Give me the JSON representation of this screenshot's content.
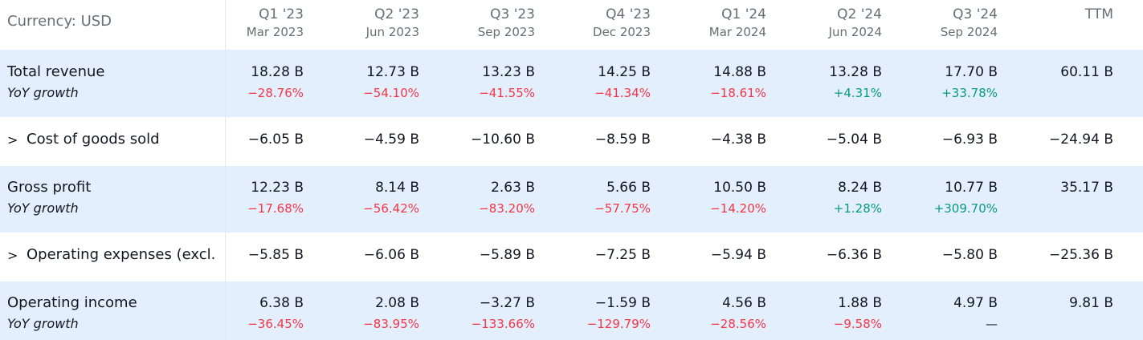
{
  "currency_label": "Currency: USD",
  "columns": [
    {
      "q": "Q1 '23",
      "d": "Mar 2023"
    },
    {
      "q": "Q2 '23",
      "d": "Jun 2023"
    },
    {
      "q": "Q3 '23",
      "d": "Sep 2023"
    },
    {
      "q": "Q4 '23",
      "d": "Dec 2023"
    },
    {
      "q": "Q1 '24",
      "d": "Mar 2024"
    },
    {
      "q": "Q2 '24",
      "d": "Jun 2024"
    },
    {
      "q": "Q3 '24",
      "d": "Sep 2024"
    },
    {
      "q": "TTM",
      "d": ""
    }
  ],
  "rows": {
    "total_revenue": {
      "label": "Total revenue",
      "sub_label": "YoY growth",
      "values": [
        "18.28 B",
        "12.73 B",
        "13.23 B",
        "14.25 B",
        "14.88 B",
        "13.28 B",
        "17.70 B",
        "60.11 B"
      ],
      "growth": [
        "−28.76%",
        "−54.10%",
        "−41.55%",
        "−41.34%",
        "−18.61%",
        "+4.31%",
        "+33.78%"
      ]
    },
    "cogs": {
      "chevron": ">",
      "label": "Cost of goods sold",
      "values": [
        "−6.05 B",
        "−4.59 B",
        "−10.60 B",
        "−8.59 B",
        "−4.38 B",
        "−5.04 B",
        "−6.93 B",
        "−24.94 B"
      ]
    },
    "gross_profit": {
      "label": "Gross profit",
      "sub_label": "YoY growth",
      "values": [
        "12.23 B",
        "8.14 B",
        "2.63 B",
        "5.66 B",
        "10.50 B",
        "8.24 B",
        "10.77 B",
        "35.17 B"
      ],
      "growth": [
        "−17.68%",
        "−56.42%",
        "−83.20%",
        "−57.75%",
        "−14.20%",
        "+1.28%",
        "+309.70%"
      ]
    },
    "opex": {
      "chevron": ">",
      "label": "Operating expenses (excl.",
      "values": [
        "−5.85 B",
        "−6.06 B",
        "−5.89 B",
        "−7.25 B",
        "−5.94 B",
        "−6.36 B",
        "−5.80 B",
        "−25.36 B"
      ]
    },
    "operating_income": {
      "label": "Operating income",
      "sub_label": "YoY growth",
      "values": [
        "6.38 B",
        "2.08 B",
        "−3.27 B",
        "−1.59 B",
        "4.56 B",
        "1.88 B",
        "4.97 B",
        "9.81 B"
      ],
      "growth": [
        "−36.45%",
        "−83.95%",
        "−133.66%",
        "−129.79%",
        "−28.56%",
        "−9.58%",
        "—"
      ]
    }
  },
  "colors": {
    "negative": "#f23645",
    "positive": "#089981",
    "highlight_row": "#e3effd"
  }
}
